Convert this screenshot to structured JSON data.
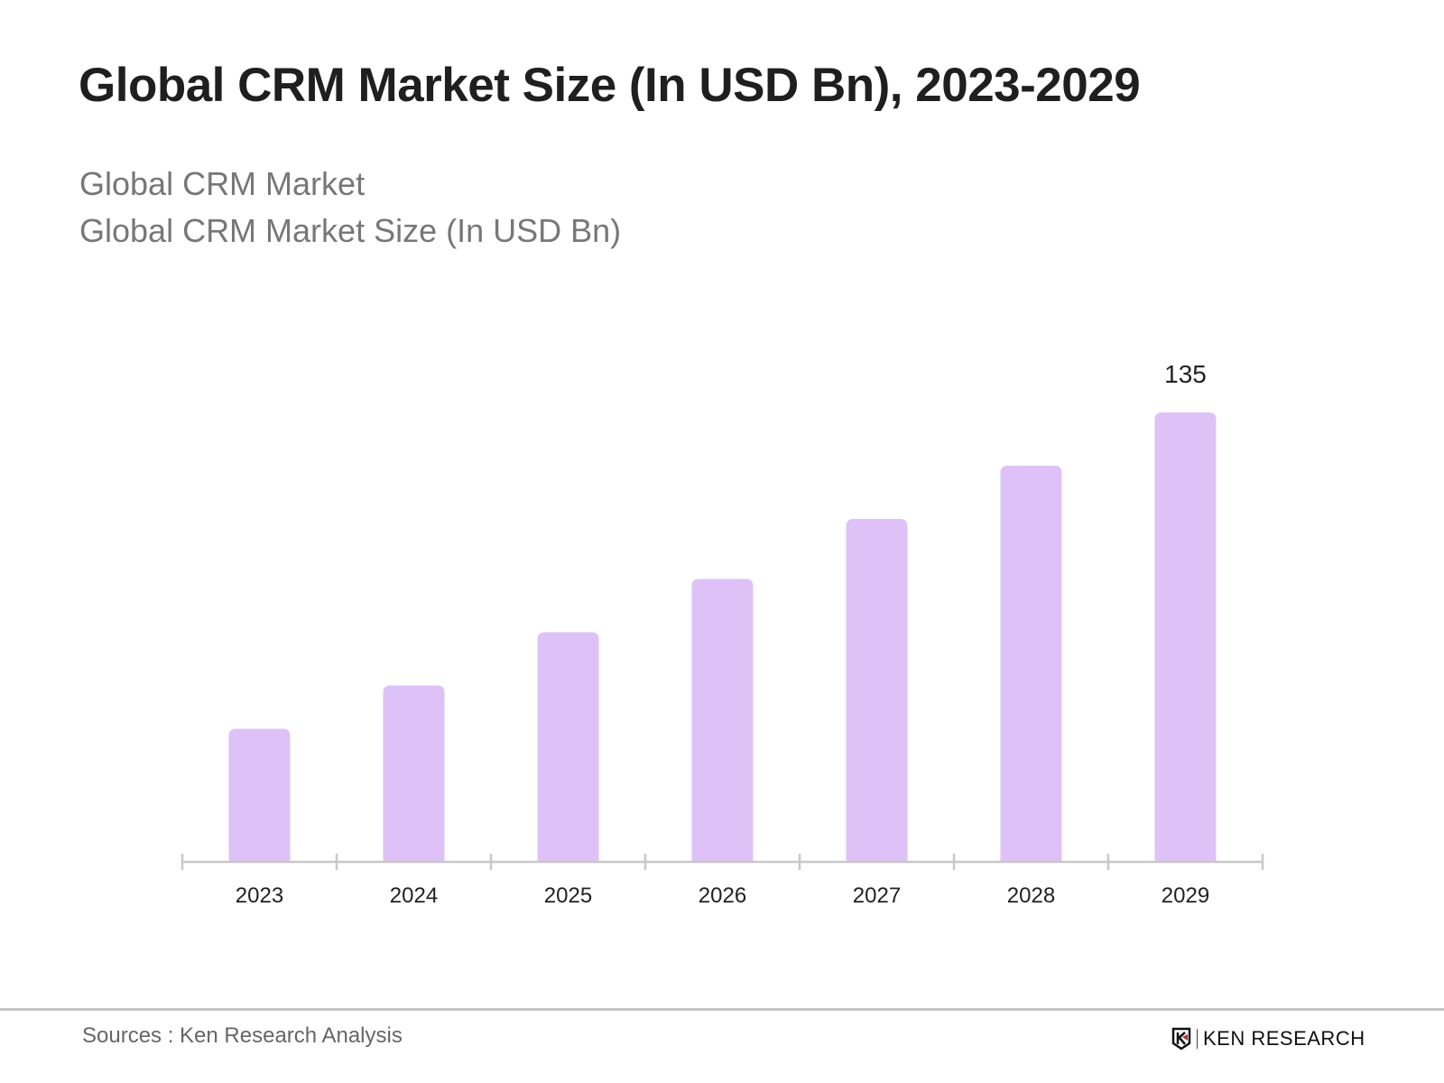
{
  "header": {
    "title": "Global CRM Market Size (In USD Bn), 2023-2029",
    "subtitle_1": "Global CRM Market",
    "subtitle_2": "Global CRM Market Size (In USD Bn)"
  },
  "chart_data": {
    "type": "bar",
    "title": "Global CRM Market Size (In USD Bn), 2023-2029",
    "categories": [
      "2023",
      "2024",
      "2025",
      "2026",
      "2027",
      "2028",
      "2029"
    ],
    "values": [
      40,
      53,
      69,
      85,
      103,
      119,
      135
    ],
    "data_labels": {
      "2029": "135"
    },
    "ylim": [
      0,
      135
    ],
    "grid": false,
    "bar_color": "#dec2f7",
    "axis_color": "#c8c8c8"
  },
  "footer": {
    "source": "Sources : Ken Research Analysis",
    "logo_text": "KEN RESEARCH"
  }
}
